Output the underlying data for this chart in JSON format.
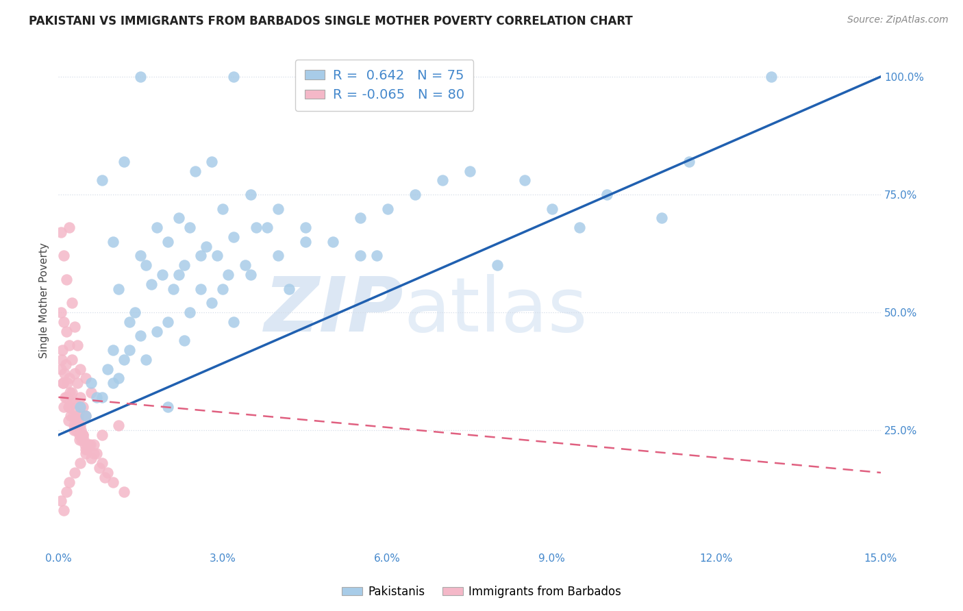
{
  "title": "PAKISTANI VS IMMIGRANTS FROM BARBADOS SINGLE MOTHER POVERTY CORRELATION CHART",
  "source": "Source: ZipAtlas.com",
  "ylabel": "Single Mother Poverty",
  "legend_blue": {
    "R": "0.642",
    "N": "75",
    "label": "Pakistanis"
  },
  "legend_pink": {
    "R": "-0.065",
    "N": "80",
    "label": "Immigrants from Barbados"
  },
  "blue_color": "#a8cce8",
  "pink_color": "#f4b8c8",
  "blue_line_color": "#2060b0",
  "pink_line_color": "#e06080",
  "watermark_zip": "ZIP",
  "watermark_atlas": "atlas",
  "blue_scatter_x": [
    1.5,
    3.2,
    0.8,
    1.2,
    2.5,
    2.8,
    4.0,
    1.0,
    1.8,
    2.2,
    3.5,
    1.5,
    2.0,
    2.4,
    3.0,
    1.6,
    2.6,
    3.2,
    1.1,
    1.9,
    2.3,
    2.7,
    1.4,
    2.1,
    3.6,
    1.3,
    2.9,
    1.7,
    2.2,
    3.8,
    1.0,
    1.5,
    2.0,
    2.8,
    3.4,
    1.2,
    2.6,
    3.1,
    4.5,
    5.0,
    5.5,
    6.0,
    7.0,
    8.0,
    9.5,
    11.0,
    13.0,
    0.6,
    0.9,
    1.3,
    1.8,
    2.4,
    3.0,
    3.5,
    4.0,
    4.5,
    5.5,
    6.5,
    7.5,
    8.5,
    9.0,
    10.0,
    11.5,
    0.7,
    1.1,
    1.6,
    2.3,
    3.2,
    4.2,
    5.8,
    0.4,
    0.5,
    0.8,
    1.0,
    2.0
  ],
  "blue_scatter_y": [
    100,
    100,
    78,
    82,
    80,
    82,
    72,
    65,
    68,
    70,
    75,
    62,
    65,
    68,
    72,
    60,
    62,
    66,
    55,
    58,
    60,
    64,
    50,
    55,
    68,
    48,
    62,
    56,
    58,
    68,
    42,
    45,
    48,
    52,
    60,
    40,
    55,
    58,
    68,
    65,
    62,
    72,
    78,
    60,
    68,
    70,
    100,
    35,
    38,
    42,
    46,
    50,
    55,
    58,
    62,
    65,
    70,
    75,
    80,
    78,
    72,
    75,
    82,
    32,
    36,
    40,
    44,
    48,
    55,
    62,
    30,
    28,
    32,
    35,
    30
  ],
  "pink_scatter_x": [
    0.05,
    0.1,
    0.15,
    0.2,
    0.25,
    0.3,
    0.35,
    0.4,
    0.5,
    0.6,
    0.05,
    0.1,
    0.15,
    0.2,
    0.25,
    0.3,
    0.35,
    0.4,
    0.45,
    0.5,
    0.05,
    0.08,
    0.12,
    0.18,
    0.22,
    0.28,
    0.32,
    0.38,
    0.42,
    0.48,
    0.06,
    0.11,
    0.16,
    0.21,
    0.26,
    0.31,
    0.36,
    0.41,
    0.46,
    0.52,
    0.07,
    0.13,
    0.19,
    0.24,
    0.29,
    0.34,
    0.39,
    0.44,
    0.55,
    0.65,
    0.08,
    0.14,
    0.2,
    0.27,
    0.33,
    0.45,
    0.58,
    0.7,
    0.8,
    0.9,
    0.1,
    0.18,
    0.28,
    0.38,
    0.5,
    0.6,
    0.75,
    0.85,
    1.0,
    1.2,
    0.05,
    0.1,
    0.15,
    0.2,
    0.3,
    0.4,
    0.5,
    0.65,
    0.8,
    1.1
  ],
  "pink_scatter_y": [
    67,
    62,
    57,
    68,
    52,
    47,
    43,
    38,
    36,
    33,
    50,
    48,
    46,
    43,
    40,
    37,
    35,
    32,
    30,
    28,
    38,
    35,
    32,
    30,
    28,
    26,
    25,
    24,
    23,
    22,
    40,
    37,
    35,
    33,
    31,
    29,
    27,
    25,
    23,
    21,
    42,
    39,
    36,
    33,
    31,
    28,
    26,
    24,
    22,
    20,
    35,
    32,
    30,
    28,
    26,
    24,
    22,
    20,
    18,
    16,
    30,
    27,
    25,
    23,
    21,
    19,
    17,
    15,
    14,
    12,
    10,
    8,
    12,
    14,
    16,
    18,
    20,
    22,
    24,
    26
  ],
  "xmin": 0.0,
  "xmax": 15.0,
  "ymin": 0.0,
  "ymax": 105.0,
  "blue_reg_x0": 0.0,
  "blue_reg_y0": 24.0,
  "blue_reg_x1": 15.0,
  "blue_reg_y1": 100.0,
  "pink_reg_x0": 0.0,
  "pink_reg_y0": 32.0,
  "pink_reg_x1": 15.0,
  "pink_reg_y1": 16.0,
  "x_ticks": [
    0,
    3,
    6,
    9,
    12,
    15
  ],
  "y_ticks": [
    25,
    50,
    75,
    100
  ],
  "grid_color": "#d5dde8",
  "title_fontsize": 12,
  "source_fontsize": 10,
  "tick_color": "#4488cc"
}
